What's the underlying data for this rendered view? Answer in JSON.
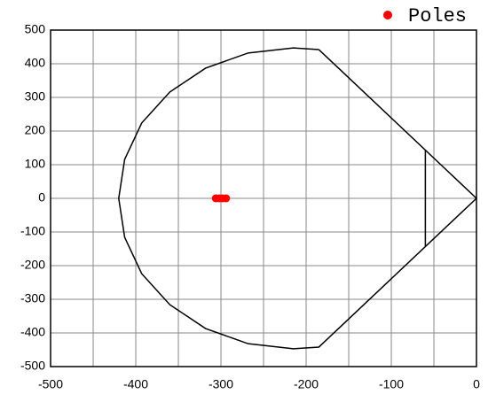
{
  "chart_data": {
    "type": "scatter",
    "xlim": [
      -500,
      0
    ],
    "ylim": [
      -500,
      500
    ],
    "xticks": [
      -500,
      -400,
      -300,
      -200,
      -100,
      0
    ],
    "xminor_grid": [
      -450,
      -350,
      -250,
      -150,
      -50
    ],
    "yticks": [
      -500,
      -400,
      -300,
      -200,
      -100,
      0,
      100,
      200,
      300,
      400,
      500
    ],
    "grid": true,
    "boundary": {
      "color": "#000000",
      "x": [
        -185,
        -215,
        -268,
        -318,
        -360,
        -393,
        -413,
        -420,
        -413,
        -393,
        -360,
        -318,
        -268,
        -215,
        -185,
        0,
        -185,
        null,
        -60,
        -60
      ],
      "y": [
        442,
        447,
        432,
        387,
        316,
        224,
        116,
        0,
        -116,
        -224,
        -316,
        -387,
        -432,
        -447,
        -442,
        0,
        442,
        null,
        144,
        -144
      ]
    },
    "series": [
      {
        "name": "Poles",
        "color": "#ff0000",
        "x": [
          -306,
          -302,
          -298,
          -294
        ],
        "y": [
          0,
          0,
          0,
          0
        ]
      }
    ],
    "legend": "upper right"
  }
}
